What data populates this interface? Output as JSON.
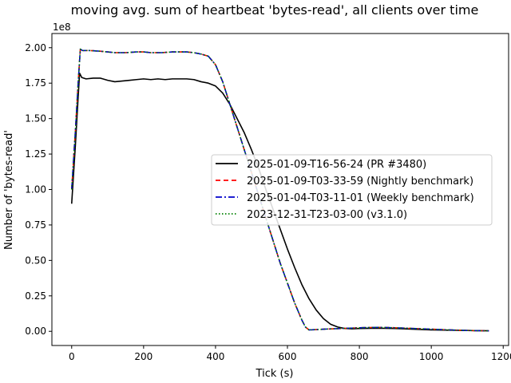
{
  "chart_data": {
    "type": "line",
    "title": "moving avg. sum of heartbeat 'bytes-read', all clients over time",
    "xlabel": "Tick (s)",
    "ylabel": "Number of 'bytes-read'",
    "y_offset_label": "1e8",
    "xlim": [
      -55,
      1215
    ],
    "ylim": [
      -10000000.0,
      210000000.0
    ],
    "xticks": [
      0,
      200,
      400,
      600,
      800,
      1000,
      1200
    ],
    "yticks": [
      0.0,
      0.25,
      0.5,
      0.75,
      1.0,
      1.25,
      1.5,
      1.75,
      2.0
    ],
    "ytick_labels": [
      "0.00",
      "0.25",
      "0.50",
      "0.75",
      "1.00",
      "1.25",
      "1.50",
      "1.75",
      "2.00"
    ],
    "grid": false,
    "legend_position": "center-right",
    "series": [
      {
        "name": "2025-01-09-T16-56-24 (PR #3480)",
        "color": "#000000",
        "dash": "solid",
        "x": [
          0,
          10,
          18,
          22,
          28,
          40,
          60,
          80,
          100,
          120,
          140,
          160,
          180,
          200,
          220,
          240,
          260,
          280,
          300,
          320,
          340,
          360,
          380,
          400,
          420,
          440,
          460,
          480,
          500,
          520,
          540,
          560,
          580,
          600,
          620,
          640,
          660,
          680,
          700,
          720,
          740,
          760,
          780,
          800,
          850,
          900,
          950,
          1000,
          1050,
          1100,
          1160
        ],
        "y": [
          90000000.0,
          130000000.0,
          165000000.0,
          182000000.0,
          179000000.0,
          178000000.0,
          178500000.0,
          178500000.0,
          177000000.0,
          176000000.0,
          176500000.0,
          177000000.0,
          177500000.0,
          178000000.0,
          177500000.0,
          178000000.0,
          177500000.0,
          178000000.0,
          178000000.0,
          178000000.0,
          177500000.0,
          176000000.0,
          175000000.0,
          173000000.0,
          168000000.0,
          160000000.0,
          150000000.0,
          140000000.0,
          128000000.0,
          115000000.0,
          100000000.0,
          86000000.0,
          72000000.0,
          58000000.0,
          45000000.0,
          33000000.0,
          23000000.0,
          15000000.0,
          9000000.0,
          5000000.0,
          3000000.0,
          2000000.0,
          1800000.0,
          2000000.0,
          2200000.0,
          2000000.0,
          1500000.0,
          1000000.0,
          800000.0,
          600000.0,
          400000.0
        ]
      },
      {
        "name": "2025-01-09-T03-33-59 (Nightly benchmark)",
        "color": "#ff0000",
        "dash": "6,4",
        "x": [
          0,
          10,
          18,
          24,
          30,
          50,
          80,
          100,
          120,
          150,
          180,
          200,
          220,
          250,
          280,
          300,
          320,
          340,
          360,
          380,
          400,
          420,
          440,
          460,
          480,
          500,
          520,
          540,
          560,
          580,
          600,
          620,
          640,
          650,
          660,
          680,
          700,
          750,
          800,
          850,
          900,
          950,
          1000,
          1050,
          1100,
          1160
        ],
        "y": [
          100000000.0,
          140000000.0,
          175000000.0,
          199000000.0,
          198000000.0,
          198000000.0,
          197500000.0,
          197000000.0,
          196500000.0,
          196500000.0,
          197000000.0,
          197000000.0,
          196500000.0,
          196500000.0,
          197000000.0,
          197000000.0,
          197000000.0,
          196500000.0,
          195500000.0,
          194000000.0,
          188000000.0,
          176000000.0,
          160000000.0,
          144000000.0,
          128000000.0,
          112000000.0,
          96000000.0,
          80000000.0,
          64000000.0,
          48000000.0,
          34000000.0,
          20000000.0,
          8000000.0,
          3000000.0,
          1000000.0,
          1200000.0,
          1500000.0,
          2000000.0,
          2500000.0,
          2800000.0,
          2500000.0,
          2000000.0,
          1500000.0,
          1000000.0,
          600000.0,
          300000.0
        ]
      },
      {
        "name": "2025-01-04-T03-11-01 (Weekly benchmark)",
        "color": "#0000cc",
        "dash": "8,3,2,3",
        "x": [
          0,
          10,
          18,
          24,
          30,
          50,
          80,
          100,
          120,
          150,
          180,
          200,
          220,
          250,
          280,
          300,
          320,
          340,
          360,
          380,
          400,
          420,
          440,
          460,
          480,
          500,
          520,
          540,
          560,
          580,
          600,
          620,
          640,
          650,
          660,
          680,
          700,
          750,
          800,
          850,
          900,
          950,
          1000,
          1050,
          1100,
          1160
        ],
        "y": [
          100000000.0,
          140000000.0,
          175000000.0,
          199000000.0,
          198000000.0,
          198000000.0,
          197500000.0,
          197000000.0,
          196500000.0,
          196500000.0,
          197000000.0,
          197000000.0,
          196500000.0,
          196500000.0,
          197000000.0,
          197000000.0,
          197000000.0,
          196500000.0,
          195500000.0,
          194000000.0,
          188000000.0,
          176000000.0,
          160000000.0,
          144000000.0,
          128000000.0,
          112000000.0,
          96000000.0,
          80000000.0,
          64000000.0,
          48000000.0,
          34000000.0,
          20000000.0,
          8000000.0,
          3000000.0,
          1000000.0,
          1200000.0,
          1500000.0,
          2000000.0,
          2500000.0,
          2800000.0,
          2500000.0,
          2000000.0,
          1500000.0,
          1000000.0,
          600000.0,
          300000.0
        ]
      },
      {
        "name": "2023-12-31-T23-03-00 (v3.1.0)",
        "color": "#008000",
        "dash": "1.5,2.5",
        "x": [
          0,
          10,
          18,
          24,
          30,
          50,
          80,
          100,
          120,
          150,
          180,
          200,
          220,
          250,
          280,
          300,
          320,
          340,
          360,
          380,
          400,
          420,
          440,
          460,
          480,
          500,
          520,
          540,
          560,
          580,
          600,
          620,
          640,
          650,
          660,
          680,
          700,
          750,
          800,
          850,
          900,
          950,
          1000,
          1050,
          1100,
          1160
        ],
        "y": [
          100000000.0,
          140000000.0,
          175000000.0,
          199000000.0,
          198000000.0,
          198000000.0,
          197500000.0,
          197000000.0,
          196500000.0,
          196500000.0,
          197000000.0,
          197000000.0,
          196500000.0,
          196500000.0,
          197000000.0,
          197000000.0,
          197000000.0,
          196500000.0,
          195500000.0,
          194000000.0,
          188000000.0,
          176000000.0,
          160000000.0,
          144000000.0,
          128000000.0,
          112000000.0,
          96000000.0,
          80000000.0,
          64000000.0,
          48000000.0,
          34000000.0,
          20000000.0,
          8000000.0,
          3000000.0,
          1000000.0,
          1200000.0,
          1500000.0,
          2000000.0,
          2500000.0,
          2800000.0,
          2500000.0,
          2000000.0,
          1500000.0,
          1000000.0,
          600000.0,
          300000.0
        ]
      }
    ]
  }
}
